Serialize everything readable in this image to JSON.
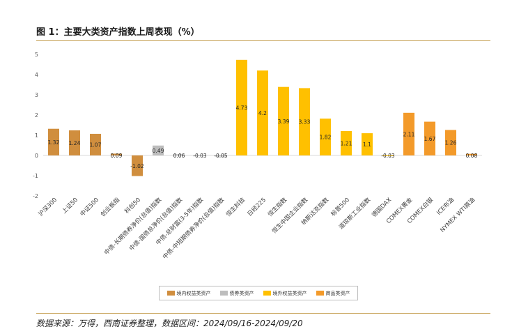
{
  "title": "图 1：主要大类资产指数上周表现（%）",
  "source": "数据来源：万得，西南证券整理，数据区间：2024/09/16-2024/09/20",
  "colors": {
    "境内权益类资产": "#d08e3e",
    "债券类资产": "#bdbdbd",
    "境外权益类资产": "#ffc000",
    "商品类资产": "#f39a2a"
  },
  "legend": [
    "境内权益类资产",
    "债券类资产",
    "境外权益类资产",
    "商品类资产"
  ],
  "chart_data": {
    "type": "bar",
    "title": "图 1：主要大类资产指数上周表现（%）",
    "xlabel": "",
    "ylabel": "",
    "ylim": [
      -2,
      5
    ],
    "yticks": [
      "-2",
      "-1",
      "0",
      "1",
      "2",
      "3",
      "4",
      "5"
    ],
    "grid": false,
    "legend_position": "bottom",
    "categories": [
      "沪深300",
      "上证50",
      "中证500",
      "创业板指",
      "科创50",
      "中债-长期债券净价(总值)指数",
      "中债-国债总净价(总值)指数",
      "中债-总财富(3-5年)指数",
      "中债-中短期债券净价(总值)指数",
      "恒生科技",
      "日经225",
      "恒生指数",
      "恒生中国企业指数",
      "纳斯达克指数",
      "标普500",
      "道琼斯工业指数",
      "德国DAX",
      "COMEX黄金",
      "COMEX白银",
      "ICE布油",
      "NYMEX WTI原油"
    ],
    "values": [
      1.32,
      1.24,
      1.07,
      0.09,
      -1.02,
      0.49,
      0.06,
      -0.03,
      -0.05,
      4.73,
      4.2,
      3.39,
      3.33,
      1.82,
      1.21,
      1.1,
      -0.03,
      2.11,
      1.67,
      1.26,
      0.08
    ],
    "labels": [
      "1.32",
      "1.24",
      "1.07",
      "0.09",
      "-1.02",
      "0.49",
      "0.06",
      "-0.03",
      "-0.05",
      "4.73",
      "4.2",
      "3.39",
      "3.33",
      "1.82",
      "1.21",
      "1.1",
      "-0.03",
      "2.11",
      "1.67",
      "1.26",
      "0.08"
    ],
    "groups": [
      "境内权益类资产",
      "境内权益类资产",
      "境内权益类资产",
      "境内权益类资产",
      "境内权益类资产",
      "债券类资产",
      "债券类资产",
      "债券类资产",
      "债券类资产",
      "境外权益类资产",
      "境外权益类资产",
      "境外权益类资产",
      "境外权益类资产",
      "境外权益类资产",
      "境外权益类资产",
      "境外权益类资产",
      "境外权益类资产",
      "商品类资产",
      "商品类资产",
      "商品类资产",
      "商品类资产"
    ]
  }
}
